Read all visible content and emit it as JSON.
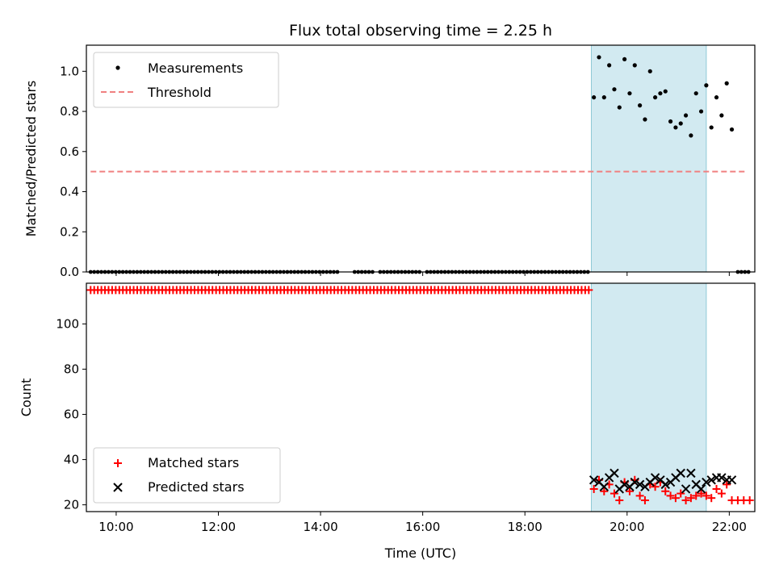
{
  "chart_data": [
    {
      "type": "scatter",
      "title": "Flux total observing time = 2.25 h",
      "xlabel": "",
      "ylabel": "Matched/Predicted stars",
      "xlim": [
        "09:25",
        "22:30"
      ],
      "ylim": [
        0,
        1.13
      ],
      "yticks": [
        "0.0",
        "0.2",
        "0.4",
        "0.6",
        "0.8",
        "1.0"
      ],
      "shaded_region": {
        "start": "19:18",
        "end": "21:33",
        "color": "#add8e6"
      },
      "legend": {
        "placement": "top-left",
        "entries": [
          "Measurements",
          "Threshold"
        ]
      },
      "series": [
        {
          "name": "Measurements",
          "marker": "dot",
          "color": "#000000",
          "points": [
            [
              "19:21",
              0.87
            ],
            [
              "19:27",
              1.07
            ],
            [
              "19:33",
              0.87
            ],
            [
              "19:39",
              1.03
            ],
            [
              "19:45",
              0.91
            ],
            [
              "19:51",
              0.82
            ],
            [
              "19:57",
              1.06
            ],
            [
              "20:03",
              0.89
            ],
            [
              "20:09",
              1.03
            ],
            [
              "20:15",
              0.83
            ],
            [
              "20:21",
              0.76
            ],
            [
              "20:27",
              1.0
            ],
            [
              "20:33",
              0.87
            ],
            [
              "20:39",
              0.89
            ],
            [
              "20:45",
              0.9
            ],
            [
              "20:51",
              0.75
            ],
            [
              "20:57",
              0.72
            ],
            [
              "21:03",
              0.74
            ],
            [
              "21:09",
              0.78
            ],
            [
              "21:15",
              0.68
            ],
            [
              "21:21",
              0.89
            ],
            [
              "21:27",
              0.8
            ],
            [
              "21:33",
              0.93
            ],
            [
              "21:39",
              0.72
            ],
            [
              "21:45",
              0.87
            ],
            [
              "21:51",
              0.78
            ],
            [
              "21:57",
              0.94
            ],
            [
              "22:03",
              0.71
            ]
          ],
          "zero_runs": [
            [
              "09:30",
              "14:20"
            ],
            [
              "14:40",
              "15:05"
            ],
            [
              "15:10",
              "15:58"
            ],
            [
              "16:05",
              "19:15"
            ],
            [
              "22:10",
              "22:25"
            ]
          ]
        },
        {
          "name": "Threshold",
          "style": "dashed",
          "color": "#f08080",
          "x": [
            "09:30",
            "22:20"
          ],
          "y": 0.5
        }
      ]
    },
    {
      "type": "scatter",
      "title": "",
      "xlabel": "Time (UTC)",
      "ylabel": "Count",
      "xlim": [
        "09:25",
        "22:30"
      ],
      "ylim": [
        17,
        118
      ],
      "xticks": [
        "10:00",
        "12:00",
        "14:00",
        "16:00",
        "18:00",
        "20:00",
        "22:00"
      ],
      "yticks": [
        "20",
        "40",
        "60",
        "80",
        "100"
      ],
      "shaded_region": {
        "start": "19:18",
        "end": "21:33",
        "color": "#add8e6"
      },
      "legend": {
        "placement": "bottom-left",
        "entries": [
          "Matched stars",
          "Predicted stars"
        ]
      },
      "series": [
        {
          "name": "Matched stars",
          "marker": "plus",
          "color": "#ff0000",
          "runs": [
            {
              "start": "09:30",
              "end": "19:15",
              "value": 115,
              "count": 140
            }
          ],
          "points": [
            [
              "19:21",
              27
            ],
            [
              "19:27",
              31
            ],
            [
              "19:33",
              26
            ],
            [
              "19:39",
              29
            ],
            [
              "19:45",
              25
            ],
            [
              "19:51",
              22
            ],
            [
              "19:57",
              30
            ],
            [
              "20:03",
              26
            ],
            [
              "20:09",
              31
            ],
            [
              "20:15",
              24
            ],
            [
              "20:21",
              22
            ],
            [
              "20:27",
              29
            ],
            [
              "20:33",
              28
            ],
            [
              "20:39",
              30
            ],
            [
              "20:45",
              26
            ],
            [
              "20:51",
              24
            ],
            [
              "20:57",
              23
            ],
            [
              "21:03",
              25
            ],
            [
              "21:09",
              22
            ],
            [
              "21:15",
              23
            ],
            [
              "21:21",
              24
            ],
            [
              "21:27",
              25
            ],
            [
              "21:33",
              24
            ],
            [
              "21:39",
              23
            ],
            [
              "21:45",
              27
            ],
            [
              "21:51",
              25
            ],
            [
              "21:57",
              29
            ],
            [
              "22:03",
              22
            ],
            [
              "22:10",
              22
            ],
            [
              "22:17",
              22
            ],
            [
              "22:24",
              22
            ]
          ]
        },
        {
          "name": "Predicted stars",
          "marker": "x",
          "color": "#000000",
          "points": [
            [
              "19:21",
              31
            ],
            [
              "19:27",
              30
            ],
            [
              "19:33",
              28
            ],
            [
              "19:39",
              32
            ],
            [
              "19:45",
              34
            ],
            [
              "19:51",
              27
            ],
            [
              "19:57",
              29
            ],
            [
              "20:03",
              28
            ],
            [
              "20:09",
              30
            ],
            [
              "20:15",
              29
            ],
            [
              "20:21",
              28
            ],
            [
              "20:27",
              30
            ],
            [
              "20:33",
              32
            ],
            [
              "20:39",
              31
            ],
            [
              "20:45",
              29
            ],
            [
              "20:51",
              30
            ],
            [
              "20:57",
              32
            ],
            [
              "21:03",
              34
            ],
            [
              "21:09",
              27
            ],
            [
              "21:15",
              34
            ],
            [
              "21:21",
              29
            ],
            [
              "21:27",
              27
            ],
            [
              "21:33",
              30
            ],
            [
              "21:39",
              31
            ],
            [
              "21:45",
              32
            ],
            [
              "21:51",
              32
            ],
            [
              "21:57",
              31
            ],
            [
              "22:03",
              31
            ]
          ]
        }
      ]
    }
  ]
}
